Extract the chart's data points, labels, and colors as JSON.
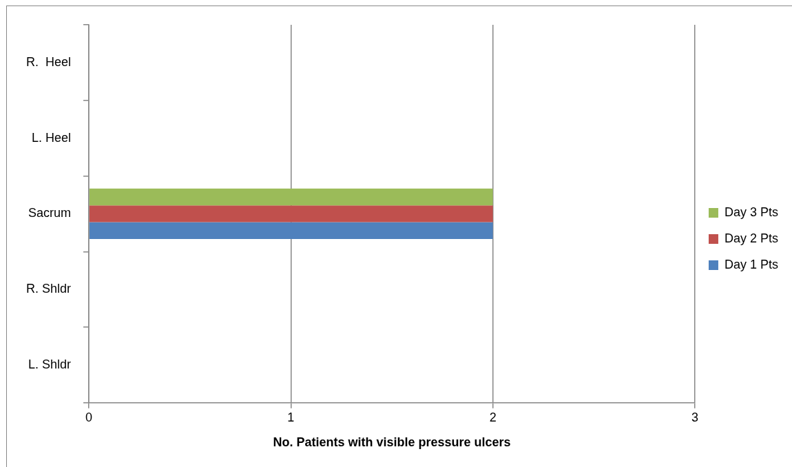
{
  "chart_data": {
    "type": "bar",
    "orientation": "horizontal",
    "xlabel": "No. Patients with visible pressure ulcers",
    "categories": [
      "R.  Heel",
      "L. Heel",
      "Sacrum",
      "R. Shldr",
      "L. Shldr"
    ],
    "series": [
      {
        "name": "Day 1 Pts",
        "color": "#4f81bd",
        "values": [
          0,
          0,
          2,
          0,
          0
        ]
      },
      {
        "name": "Day 2 Pts",
        "color": "#c0504d",
        "values": [
          0,
          0,
          2,
          0,
          0
        ]
      },
      {
        "name": "Day 3 Pts",
        "color": "#9bbb59",
        "values": [
          0,
          0,
          2,
          0,
          0
        ]
      }
    ],
    "xlim": [
      0,
      3
    ],
    "xticks": [
      0,
      1,
      2,
      3
    ],
    "grid": "x",
    "legend": "right"
  }
}
